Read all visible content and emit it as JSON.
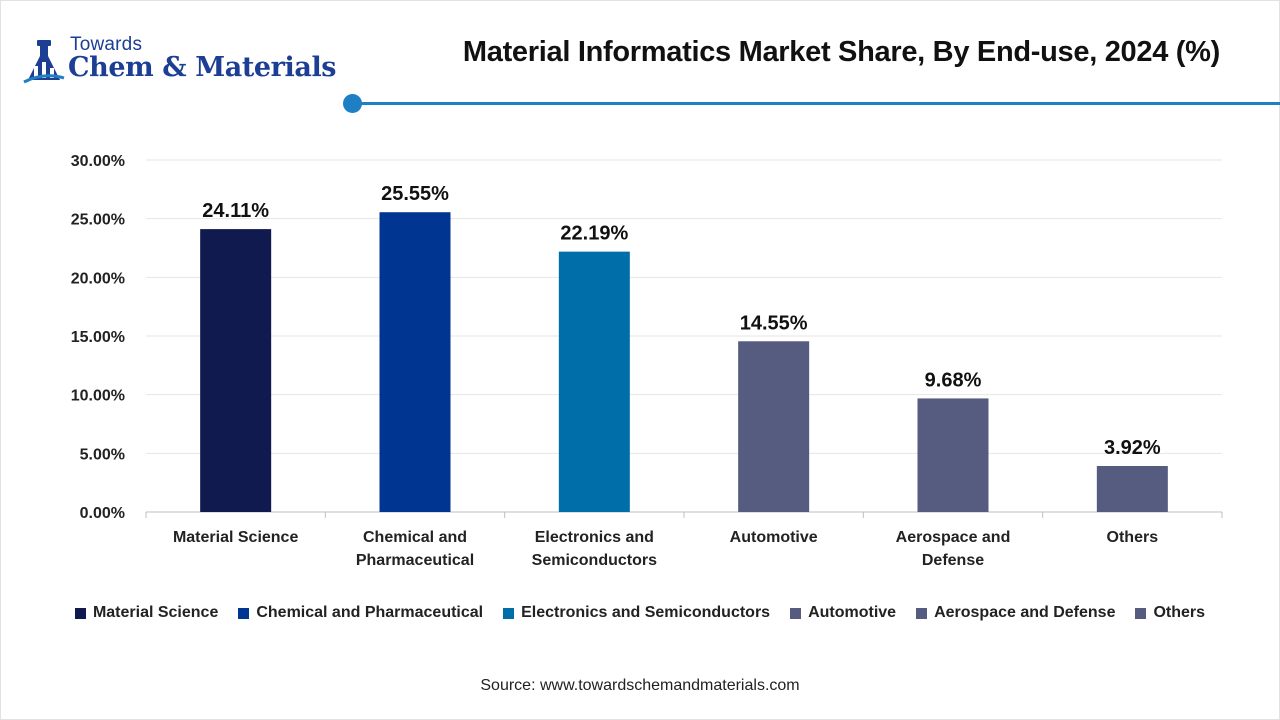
{
  "brand": {
    "top": "Towards",
    "main": "Chem & Materials",
    "logo_icon": "flask-building-icon"
  },
  "title": "Material Informatics Market Share, By End-use, 2024 (%)",
  "source": "Source: www.towardschemandmaterials.com",
  "colors": {
    "accent": "#1f7fc4",
    "brand": "#1c3f94"
  },
  "chart_data": {
    "type": "bar",
    "categories": [
      "Material Science",
      "Chemical and Pharmaceutical",
      "Electronics and Semiconductors",
      "Automotive",
      "Aerospace and Defense",
      "Others"
    ],
    "category_lines": [
      [
        "Material Science"
      ],
      [
        "Chemical and",
        "Pharmaceutical"
      ],
      [
        "Electronics and",
        "Semiconductors"
      ],
      [
        "Automotive"
      ],
      [
        "Aerospace and",
        "Defense"
      ],
      [
        "Others"
      ]
    ],
    "values": [
      24.11,
      25.55,
      22.19,
      14.55,
      9.68,
      3.92
    ],
    "data_labels": [
      "24.11%",
      "25.55%",
      "22.19%",
      "14.55%",
      "9.68%",
      "3.92%"
    ],
    "colors": [
      "#111a4e",
      "#003591",
      "#006ea8",
      "#565b80",
      "#565b80",
      "#565b80"
    ],
    "yticks": [
      0,
      5,
      10,
      15,
      20,
      25,
      30
    ],
    "ytick_labels": [
      "0.00%",
      "5.00%",
      "10.00%",
      "15.00%",
      "20.00%",
      "25.00%",
      "30.00%"
    ],
    "ylim": [
      0,
      30
    ],
    "grid": true,
    "legend": {
      "position": "bottom",
      "entries": [
        "Material Science",
        "Chemical and Pharmaceutical",
        "Electronics and Semiconductors",
        "Automotive",
        "Aerospace and Defense",
        "Others"
      ]
    }
  }
}
